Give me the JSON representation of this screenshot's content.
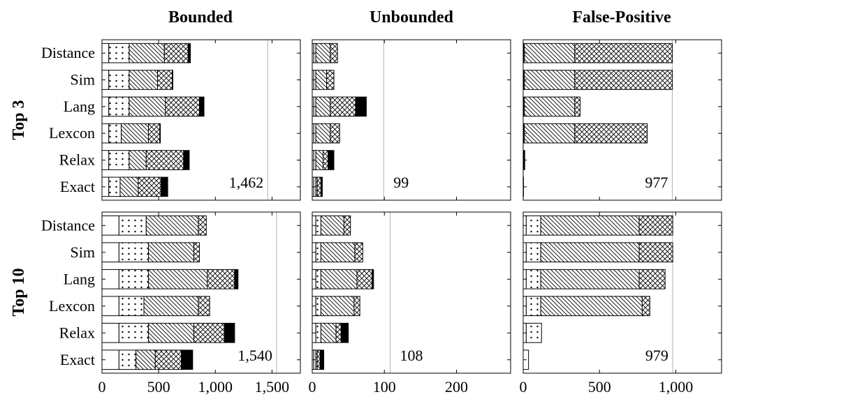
{
  "chart_data": {
    "type": "bar",
    "stacked": true,
    "orientation": "horizontal",
    "column_titles": [
      "Bounded",
      "Unbounded",
      "False-Positive"
    ],
    "row_titles": [
      "Top 3",
      "Top 10"
    ],
    "categories": [
      "Distance",
      "Sim",
      "Lang",
      "Lexcon",
      "Relax",
      "Exact"
    ],
    "x_ranges": [
      [
        0,
        1750
      ],
      [
        0,
        275
      ],
      [
        0,
        1300
      ]
    ],
    "x_ticks": [
      [
        {
          "v": 0,
          "label": "0"
        },
        {
          "v": 500,
          "label": "500"
        },
        {
          "v": 1000,
          "label": "1,000"
        },
        {
          "v": 1500,
          "label": "1,500"
        }
      ],
      [
        {
          "v": 0,
          "label": "0"
        },
        {
          "v": 100,
          "label": "100"
        },
        {
          "v": 200,
          "label": "200"
        }
      ],
      [
        {
          "v": 0,
          "label": "0"
        },
        {
          "v": 500,
          "label": "500"
        },
        {
          "v": 1000,
          "label": "1,000"
        }
      ]
    ],
    "segment_patterns": [
      "blank",
      "dots",
      "diagonal",
      "crosshatch",
      "solid"
    ],
    "grid": false,
    "panels": [
      {
        "row": 0,
        "col": 0,
        "ref_value": 1462,
        "ref_label": "1,462",
        "bars": [
          [
            60,
            180,
            310,
            210,
            20
          ],
          [
            60,
            180,
            250,
            130,
            5
          ],
          [
            60,
            180,
            320,
            300,
            40
          ],
          [
            60,
            110,
            240,
            100,
            5
          ],
          [
            60,
            180,
            150,
            330,
            50
          ],
          [
            60,
            100,
            160,
            200,
            60
          ]
        ]
      },
      {
        "row": 0,
        "col": 1,
        "ref_value": 99,
        "ref_label": "99",
        "bars": [
          [
            2,
            3,
            20,
            10,
            0
          ],
          [
            2,
            3,
            15,
            10,
            0
          ],
          [
            2,
            3,
            20,
            35,
            15
          ],
          [
            2,
            3,
            20,
            13,
            0
          ],
          [
            2,
            3,
            10,
            7,
            8
          ],
          [
            2,
            3,
            2,
            5,
            2
          ]
        ]
      },
      {
        "row": 0,
        "col": 2,
        "ref_value": 977,
        "ref_label": "977",
        "bars": [
          [
            3,
            5,
            330,
            640,
            0
          ],
          [
            3,
            5,
            330,
            640,
            0
          ],
          [
            3,
            5,
            330,
            35,
            0
          ],
          [
            3,
            5,
            330,
            475,
            0
          ],
          [
            2,
            0,
            0,
            0,
            8
          ],
          [
            2,
            0,
            0,
            0,
            0
          ]
        ]
      },
      {
        "row": 1,
        "col": 0,
        "ref_value": 1540,
        "ref_label": "1,540",
        "bars": [
          [
            150,
            240,
            460,
            70,
            0
          ],
          [
            150,
            260,
            400,
            50,
            0
          ],
          [
            150,
            260,
            520,
            240,
            30
          ],
          [
            150,
            220,
            480,
            100,
            0
          ],
          [
            150,
            260,
            400,
            270,
            90
          ],
          [
            150,
            150,
            170,
            230,
            100
          ]
        ]
      },
      {
        "row": 1,
        "col": 1,
        "ref_value": 108,
        "ref_label": "108",
        "bars": [
          [
            5,
            7,
            32,
            9,
            0
          ],
          [
            5,
            7,
            47,
            11,
            0
          ],
          [
            5,
            7,
            50,
            21,
            2
          ],
          [
            5,
            7,
            46,
            8,
            0
          ],
          [
            5,
            7,
            21,
            7,
            10
          ],
          [
            2,
            3,
            2,
            4,
            5
          ]
        ]
      },
      {
        "row": 1,
        "col": 2,
        "ref_value": 979,
        "ref_label": "979",
        "bars": [
          [
            20,
            95,
            645,
            220,
            0
          ],
          [
            20,
            95,
            645,
            220,
            0
          ],
          [
            20,
            95,
            645,
            170,
            0
          ],
          [
            20,
            95,
            665,
            50,
            0
          ],
          [
            20,
            100,
            0,
            0,
            0
          ],
          [
            35,
            0,
            0,
            0,
            0
          ]
        ]
      }
    ]
  }
}
